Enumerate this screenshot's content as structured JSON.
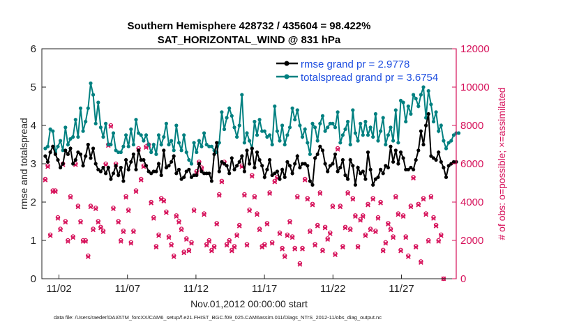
{
  "chart_data": {
    "type": "line",
    "title": "Southern Hemisphere 428732 / 435604 = 98.422%",
    "subtitle": "SAT_HORIZONTAL_WIND @ 831 hPa",
    "xlabel": "Nov.01,2012 00:00:00 start",
    "ylabel": "rmse and totalspread",
    "y2label": "# of obs: o=possible; ×=assimilated",
    "footer": "data file: /Users/raeder/DAI/ATM_forcXX/CAM6_setup/f.e21.FHIST_BGC.f09_025.CAM6assim.011/Diags_NTrS_2012-11/obs_diag_output.nc",
    "xticks": [
      "11/02",
      "11/07",
      "11/12",
      "11/17",
      "11/22",
      "11/27"
    ],
    "xtick_values": [
      2,
      7,
      12,
      17,
      22,
      27
    ],
    "xlim": [
      0.75,
      31.0
    ],
    "ylim": [
      0,
      6
    ],
    "yticks": [
      "0",
      "1",
      "2",
      "3",
      "4",
      "5",
      "6"
    ],
    "y2lim": [
      0,
      12000
    ],
    "y2ticks": [
      "0",
      "2000",
      "4000",
      "6000",
      "8000",
      "10000",
      "12000"
    ],
    "legend_position": "top-right",
    "colors": {
      "rmse": "#000000",
      "spread": "#008080",
      "obs": "#d6115a",
      "legend_text": "#1f4fe0"
    },
    "series": [
      {
        "name": "rmse grand pr = 2.9778",
        "axis": "left",
        "values": [
          3.2,
          3.05,
          3.3,
          3.45,
          3.25,
          3.1,
          2.9,
          3.0,
          3.35,
          3.25,
          3.4,
          3.0,
          3.1,
          3.3,
          3.25,
          2.95,
          3.2,
          3.5,
          3.15,
          3.4,
          3.0,
          2.85,
          2.8,
          2.9,
          2.75,
          2.9,
          2.6,
          2.75,
          2.95,
          2.7,
          2.9,
          2.55,
          3.1,
          2.85,
          3.05,
          3.25,
          2.85,
          3.35,
          3.1,
          3.1,
          2.95,
          2.8,
          2.75,
          2.8,
          2.8,
          3.0,
          2.7,
          3.35,
          2.9,
          2.95,
          3.05,
          3.2,
          2.75,
          2.85,
          2.6,
          2.65,
          2.8,
          2.85,
          2.65,
          2.7,
          2.7,
          3.0,
          2.8,
          2.75,
          2.75,
          2.75,
          2.55,
          3.25,
          3.55,
          2.8,
          3.05,
          3.0,
          2.95,
          2.75,
          3.15,
          2.85,
          2.95,
          3.05,
          3.2,
          2.8,
          3.35,
          3.0,
          3.4,
          2.9,
          3.3,
          3.1,
          2.95,
          2.65,
          2.85,
          3.1,
          2.7,
          2.75,
          2.8,
          2.6,
          2.85,
          2.65,
          3.05,
          2.95,
          2.75,
          3.0,
          3.2,
          2.9,
          3.0,
          3.0,
          2.95,
          2.55,
          2.45,
          3.15,
          3.25,
          3.45,
          3.35,
          3.0,
          2.8,
          2.95,
          3.0,
          3.25,
          2.8,
          2.9,
          3.1,
          2.7,
          2.6,
          3.1,
          2.95,
          2.45,
          2.9,
          2.75,
          2.8,
          2.6,
          3.3,
          2.85,
          2.45,
          2.6,
          2.65,
          2.85,
          2.75,
          2.95,
          2.9,
          3.45,
          3.05,
          3.35,
          3.0,
          3.3,
          3.15,
          2.85,
          2.85,
          2.9,
          2.85,
          3.1,
          3.35,
          3.85,
          3.5,
          4.0,
          4.3,
          3.2,
          3.15,
          3.1,
          3.3,
          3.05,
          2.9,
          2.65,
          2.95,
          3.0,
          3.05,
          3.05
        ]
      },
      {
        "name": "totalspread grand pr = 3.6754",
        "axis": "left",
        "values": [
          3.4,
          3.45,
          3.9,
          3.85,
          3.3,
          3.45,
          3.6,
          3.35,
          3.95,
          3.5,
          3.65,
          3.7,
          4.15,
          3.7,
          4.45,
          3.85,
          4.1,
          4.45,
          5.1,
          4.8,
          4.05,
          4.6,
          3.95,
          3.7,
          4.05,
          3.5,
          3.5,
          3.8,
          3.35,
          3.3,
          3.3,
          3.45,
          3.75,
          3.45,
          3.9,
          3.5,
          4.15,
          3.8,
          3.75,
          3.6,
          3.75,
          3.5,
          3.3,
          3.5,
          3.25,
          3.75,
          3.5,
          3.7,
          4.05,
          3.5,
          3.6,
          3.35,
          4.0,
          3.55,
          3.35,
          3.75,
          3.3,
          3.1,
          3.0,
          3.55,
          3.3,
          3.6,
          3.45,
          3.8,
          3.5,
          3.45,
          3.45,
          3.35,
          3.3,
          3.55,
          4.35,
          3.9,
          4.2,
          4.45,
          4.25,
          3.95,
          3.7,
          4.0,
          4.8,
          3.55,
          3.8,
          3.6,
          3.4,
          4.1,
          3.75,
          4.15,
          3.85,
          3.85,
          3.7,
          3.75,
          3.5,
          4.5,
          3.85,
          3.6,
          4.0,
          3.5,
          3.75,
          3.95,
          4.45,
          4.15,
          4.4,
          4.0,
          3.7,
          3.9,
          3.55,
          3.25,
          4.05,
          3.95,
          3.6,
          4.05,
          4.25,
          3.85,
          3.95,
          4.05,
          4.05,
          3.95,
          4.35,
          3.55,
          3.75,
          3.9,
          4.1,
          3.5,
          4.4,
          3.8,
          3.6,
          4.05,
          3.75,
          4.1,
          3.75,
          3.95,
          3.7,
          4.3,
          3.6,
          3.85,
          4.2,
          3.5,
          3.75,
          3.95,
          3.6,
          4.4,
          3.55,
          4.65,
          4.6,
          4.1,
          4.5,
          4.3,
          4.8,
          4.7,
          4.5,
          4.8,
          5.0,
          4.2,
          4.9,
          4.55,
          4.1,
          4.35,
          3.85,
          4.0,
          3.6,
          3.4,
          3.55,
          3.6,
          3.75,
          3.8,
          3.8
        ]
      },
      {
        "name": "possible",
        "axis": "right",
        "values": [
          5200,
          5900,
          2300,
          4600,
          4600,
          3200,
          2600,
          6000,
          3000,
          2000,
          4300,
          2200,
          6000,
          3800,
          3000,
          2000,
          2000,
          1200,
          3800,
          2600,
          3700,
          3000,
          2700,
          2500,
          6000,
          7000,
          8000,
          3700,
          6000,
          3000,
          2000,
          2500,
          4300,
          3600,
          1900,
          2500,
          4600,
          6800,
          5200,
          5900,
          6900,
          7000,
          4000,
          3200,
          1700,
          2300,
          4200,
          4100,
          3500,
          2200,
          1800,
          1200,
          3300,
          3000,
          2600,
          1400,
          2100,
          1500,
          1900,
          3600,
          5600,
          6100,
          5800,
          3400,
          1800,
          2000,
          1500,
          1700,
          2900,
          4400,
          5100,
          6100,
          1800,
          2000,
          1500,
          1700,
          2300,
          2800,
          5900,
          4400,
          1800,
          3600,
          5400,
          4300,
          3400,
          2600,
          1700,
          1800,
          2900,
          4500,
          1900,
          5100,
          5300,
          2400,
          1600,
          1200,
          2300,
          3000,
          2200,
          1600,
          4300,
          800,
          1600,
          5200,
          4200,
          2500,
          3900,
          1800,
          2800,
          4500,
          1500,
          2700,
          2100,
          2400,
          3800,
          1300,
          6800,
          3800,
          1700,
          2700,
          4500,
          2600,
          4200,
          3300,
          1700,
          3100,
          3300,
          2300,
          3900,
          2600,
          4200,
          2500,
          3200,
          4000,
          1500,
          1900,
          2900,
          2600,
          2200,
          4300,
          3400,
          1500,
          3300,
          2200,
          1200,
          3800,
          5300,
          1700,
          3900,
          900,
          4200,
          3400,
          2000,
          4300,
          3200,
          2800,
          2000,
          2300,
          0
        ]
      },
      {
        "name": "assimilated",
        "axis": "right",
        "values": [
          5150,
          5850,
          2250,
          4550,
          4550,
          3150,
          2550,
          5950,
          2950,
          1950,
          4250,
          2150,
          5950,
          3750,
          2950,
          1950,
          1950,
          1150,
          3750,
          2550,
          3650,
          2950,
          2650,
          2450,
          5950,
          6950,
          7950,
          3650,
          5950,
          2950,
          1950,
          2450,
          4250,
          3550,
          1850,
          2450,
          4550,
          6750,
          5150,
          5850,
          6850,
          6950,
          3950,
          3150,
          1650,
          2250,
          4150,
          4050,
          3450,
          2150,
          1750,
          1150,
          3250,
          2950,
          2550,
          1350,
          2050,
          1450,
          1850,
          3550,
          5550,
          6050,
          5750,
          3350,
          1750,
          1950,
          1450,
          1650,
          2850,
          4350,
          5050,
          6050,
          1750,
          1950,
          1450,
          1650,
          2250,
          2750,
          5850,
          4350,
          1750,
          3550,
          5350,
          4250,
          3350,
          2550,
          1650,
          1750,
          2850,
          4450,
          1850,
          5050,
          5250,
          2350,
          1550,
          1150,
          2250,
          2950,
          2150,
          1550,
          4250,
          750,
          1550,
          5150,
          4150,
          2450,
          3850,
          1750,
          2750,
          4450,
          1450,
          2650,
          2050,
          2350,
          3750,
          1250,
          6750,
          3750,
          1650,
          2650,
          4450,
          2550,
          4150,
          3250,
          1650,
          3050,
          3250,
          2250,
          3850,
          2550,
          4150,
          2450,
          3150,
          3950,
          1450,
          1850,
          2850,
          2550,
          2150,
          4250,
          3350,
          1450,
          3250,
          2150,
          1150,
          3750,
          5250,
          1650,
          3850,
          850,
          4150,
          3350,
          1950,
          4250,
          3150,
          2750,
          1950,
          2250,
          0
        ]
      }
    ]
  }
}
